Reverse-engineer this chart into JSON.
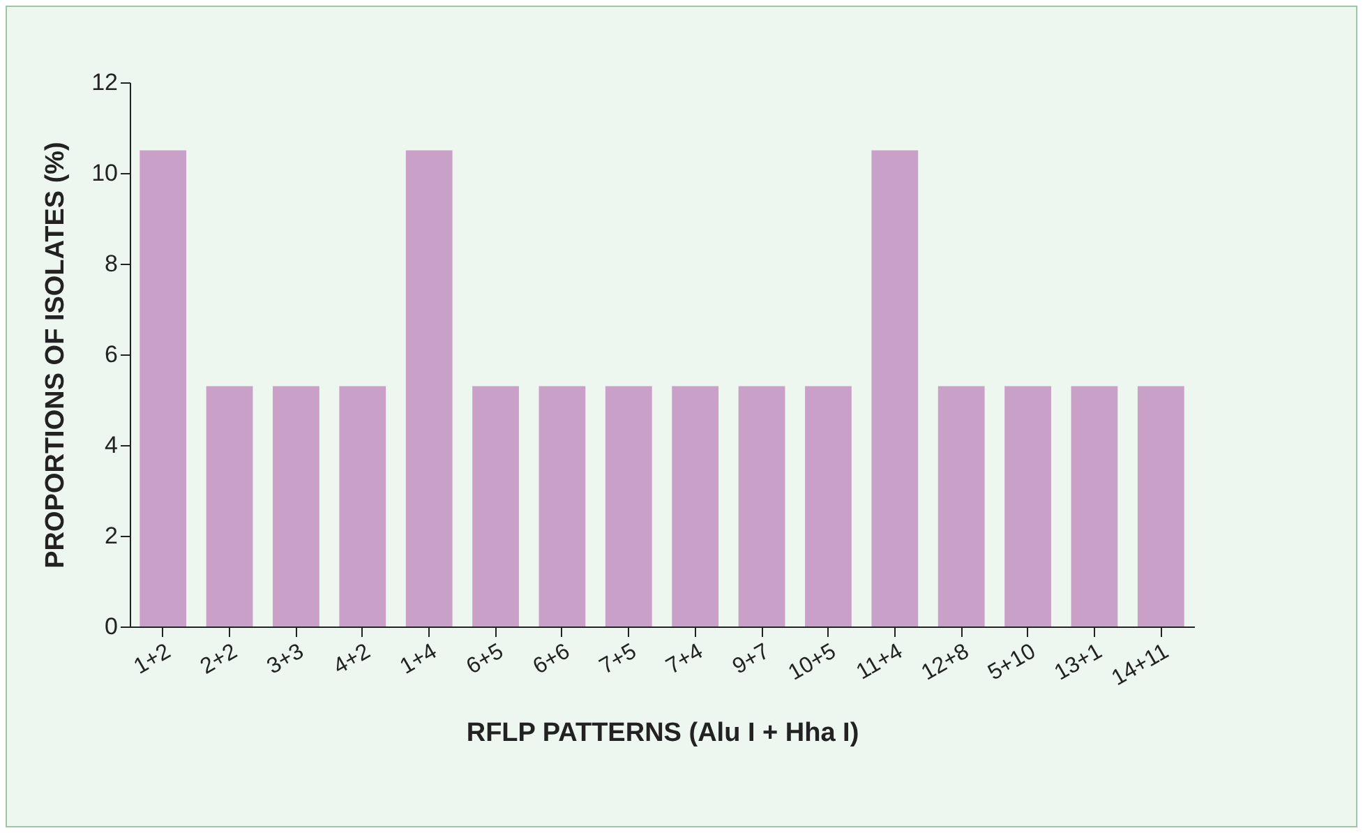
{
  "chart_data": {
    "type": "bar",
    "xlabel": "RFLP PATTERNS (Alu I + Hha I)",
    "ylabel": "PROPORTIONS OF ISOLATES (%)",
    "categories": [
      "1+2",
      "2+2",
      "3+3",
      "4+2",
      "1+4",
      "6+5",
      "6+6",
      "7+5",
      "7+4",
      "9+7",
      "10+5",
      "11+4",
      "12+8",
      "5+10",
      "13+1",
      "14+11"
    ],
    "values": [
      10.5,
      5.3,
      5.3,
      5.3,
      10.5,
      5.3,
      5.3,
      5.3,
      5.3,
      5.3,
      5.3,
      10.5,
      5.3,
      5.3,
      5.3,
      5.3
    ],
    "color": "#c8a0c8",
    "ylim": [
      0,
      12
    ],
    "yticks": [
      0,
      2,
      4,
      6,
      8,
      10,
      12
    ],
    "grid": false,
    "legend": false
  }
}
